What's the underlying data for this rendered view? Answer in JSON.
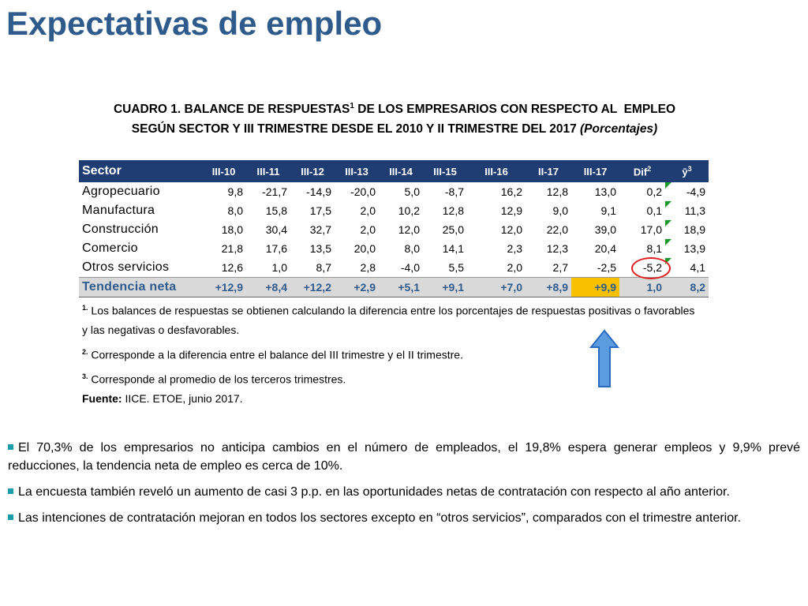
{
  "header": {
    "title": "Expectativas de empleo"
  },
  "caption": {
    "line1": {
      "before": "CUADRO 1. BALANCE DE RESPUESTAS",
      "sup": "1",
      "after": " DE LOS EMPRESARIOS CON RESPECTO AL  EMPLEO"
    },
    "line2": {
      "text": "SEGÚN SECTOR Y III TRIMESTRE DESDE EL 2010 Y II TRIMESTRE DEL 2017",
      "italic": "(Porcentajes)"
    }
  },
  "table": {
    "columns": [
      {
        "text": "Sector"
      },
      {
        "text": "III-10"
      },
      {
        "text": "III-11"
      },
      {
        "text": "III-12"
      },
      {
        "text": "III-13"
      },
      {
        "text": "III-14"
      },
      {
        "text": "III-15"
      },
      {
        "text": "III-16"
      },
      {
        "text": "II-17"
      },
      {
        "text": "III-17"
      },
      {
        "text": "Dif",
        "sup": "2"
      },
      {
        "text": "ȳ",
        "sup": "3"
      }
    ],
    "rows": [
      [
        "Agropecuario",
        "9,8",
        "-21,7",
        "-14,9",
        "-20,0",
        "5,0",
        "-8,7",
        "16,2",
        "12,8",
        "13,0",
        "0,2",
        "-4,9"
      ],
      [
        "Manufactura",
        "8,0",
        "15,8",
        "17,5",
        "2,0",
        "10,2",
        "12,8",
        "12,9",
        "9,0",
        "9,1",
        "0,1",
        "11,3"
      ],
      [
        "Construcción",
        "18,0",
        "30,4",
        "32,7",
        "2,0",
        "12,0",
        "25,0",
        "12,0",
        "22,0",
        "39,0",
        "17,0",
        "18,9"
      ],
      [
        "Comercio",
        "21,8",
        "17,6",
        "13,5",
        "20,0",
        "8,0",
        "14,1",
        "2,3",
        "12,3",
        "20,4",
        "8,1",
        "13,9"
      ],
      [
        "Otros servicios",
        "12,6",
        "1,0",
        "8,7",
        "2,8",
        "-4,0",
        "5,5",
        "2,0",
        "2,7",
        "-2,5",
        "-5,2",
        "4,1"
      ],
      [
        "Tendencia neta",
        "+12,9",
        "+8,4",
        "+12,2",
        "+2,9",
        "+5,1",
        "+9,1",
        "+7,0",
        "+8,9",
        "+9,9",
        "1,0",
        "8,2"
      ]
    ]
  },
  "notes": [
    {
      "marker": "1.",
      "text": "Los balances de respuestas se obtienen calculando la diferencia entre los porcentajes de respuestas positivas o favorables y las negativas o desfavorables."
    },
    {
      "marker": "2.",
      "text": "Corresponde a la diferencia entre el balance del III trimestre y el II trimestre."
    },
    {
      "marker": "3.",
      "text": "Corresponde al promedio de los terceros trimestres."
    }
  ],
  "source": {
    "label": "Fuente:",
    "text": "IICE. ETOE, junio 2017."
  },
  "bullets": [
    "El 70,3% de los empresarios no anticipa cambios en el número de empleados, el 19,8% espera generar empleos y 9,9% prevé reducciones, la tendencia neta de empleo es cerca de 10%.",
    "La encuesta también reveló un aumento de casi 3 p.p. en las oportunidades netas de contratación con respecto al año anterior.",
    "Las intenciones de contratación mejoran en todos los sectores excepto en “otros servicios”, comparados con el trimestre anterior."
  ]
}
